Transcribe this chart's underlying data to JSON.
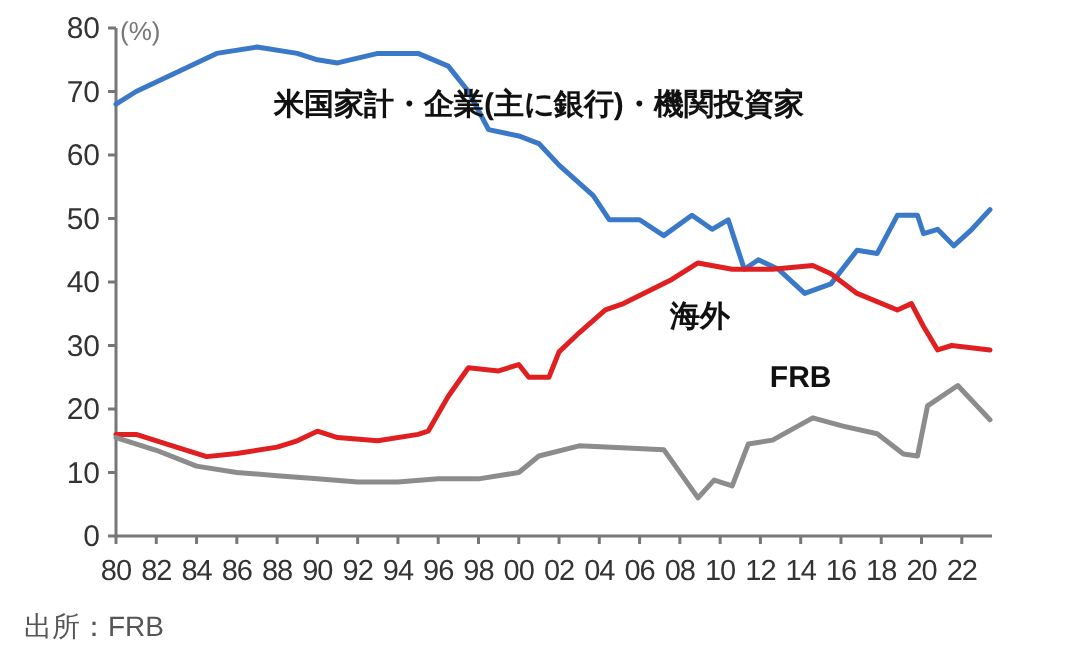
{
  "chart_data": {
    "type": "line",
    "ylabel": "(%)",
    "annotations": [
      "出所：FRB"
    ],
    "xlim": [
      1980,
      2023.5
    ],
    "ylim": [
      0,
      80
    ],
    "yticks": [
      0,
      10,
      20,
      30,
      40,
      50,
      60,
      70,
      80
    ],
    "xticks": [
      {
        "value": 1980,
        "label": "80"
      },
      {
        "value": 1982,
        "label": "82"
      },
      {
        "value": 1984,
        "label": "84"
      },
      {
        "value": 1986,
        "label": "86"
      },
      {
        "value": 1988,
        "label": "88"
      },
      {
        "value": 1990,
        "label": "90"
      },
      {
        "value": 1992,
        "label": "92"
      },
      {
        "value": 1994,
        "label": "94"
      },
      {
        "value": 1996,
        "label": "96"
      },
      {
        "value": 1998,
        "label": "98"
      },
      {
        "value": 2000,
        "label": "00"
      },
      {
        "value": 2002,
        "label": "02"
      },
      {
        "value": 2004,
        "label": "04"
      },
      {
        "value": 2006,
        "label": "06"
      },
      {
        "value": 2008,
        "label": "08"
      },
      {
        "value": 2010,
        "label": "10"
      },
      {
        "value": 2012,
        "label": "12"
      },
      {
        "value": 2014,
        "label": "14"
      },
      {
        "value": 2016,
        "label": "16"
      },
      {
        "value": 2018,
        "label": "18"
      },
      {
        "value": 2020,
        "label": "20"
      },
      {
        "value": 2022,
        "label": "22"
      }
    ],
    "grid": false,
    "legend": false,
    "series": [
      {
        "name": "米国家計・企業(主に銀行)・機関投資家",
        "color": "#3a78c8",
        "x": [
          1980,
          1981,
          1983,
          1985,
          1987,
          1989,
          1990,
          1991,
          1993,
          1995,
          1996.5,
          1997.5,
          1998.5,
          2000,
          2001,
          2002,
          2003.7,
          2004.5,
          2006,
          2007.2,
          2008.6,
          2009.6,
          2010.4,
          2011.2,
          2011.9,
          2012.9,
          2014.2,
          2015.5,
          2016.8,
          2017.8,
          2018.8,
          2019.8,
          2020.1,
          2020.8,
          2021.6,
          2022.5,
          2023.4
        ],
        "values": [
          68,
          70,
          73,
          76,
          77,
          76,
          75,
          74.5,
          76,
          76,
          74,
          70,
          64,
          63,
          61.8,
          58.4,
          53.6,
          49.8,
          49.8,
          47.3,
          50.5,
          48.3,
          49.8,
          42,
          43.5,
          42,
          38.2,
          39.7,
          45,
          44.5,
          50.5,
          50.5,
          47.6,
          48.3,
          45.7,
          48.3,
          51.4
        ]
      },
      {
        "name": "海外",
        "color": "#e02020",
        "x": [
          1980,
          1981,
          1983,
          1984.5,
          1986,
          1988,
          1989,
          1990,
          1991,
          1993,
          1995,
          1995.5,
          1996.5,
          1997.5,
          1999,
          2000,
          2000.5,
          2001.5,
          2002,
          2003,
          2004.3,
          2005.2,
          2007.6,
          2008.9,
          2010.6,
          2012.6,
          2014.6,
          2015.5,
          2016.8,
          2018.8,
          2019.5,
          2020.1,
          2020.8,
          2021.5,
          2023.4
        ],
        "values": [
          16,
          16,
          14,
          12.5,
          13,
          14,
          15,
          16.5,
          15.5,
          15,
          16,
          16.5,
          22,
          26.5,
          26,
          27,
          25,
          25,
          29,
          32,
          35.6,
          36.6,
          40.4,
          43,
          42,
          42,
          42.6,
          41.3,
          38.2,
          35.6,
          36.6,
          33,
          29.3,
          30,
          29.3
        ]
      },
      {
        "name": "FRB",
        "color": "#8c8c8c",
        "x": [
          1980,
          1982,
          1984,
          1986,
          1988,
          1990,
          1992,
          1994,
          1996,
          1998,
          2000,
          2001,
          2003,
          2007.2,
          2008.9,
          2009.7,
          2010.6,
          2011.4,
          2012.6,
          2014.6,
          2016.1,
          2017.8,
          2019.1,
          2019.8,
          2020.3,
          2021.8,
          2023.4
        ],
        "values": [
          15.5,
          13.5,
          11,
          10,
          9.5,
          9,
          8.5,
          8.5,
          9,
          9,
          10,
          12.6,
          14.2,
          13.6,
          6,
          8.8,
          7.9,
          14.5,
          15.1,
          18.6,
          17.3,
          16.1,
          12.9,
          12.6,
          20.5,
          23.7,
          18.3
        ]
      }
    ]
  }
}
